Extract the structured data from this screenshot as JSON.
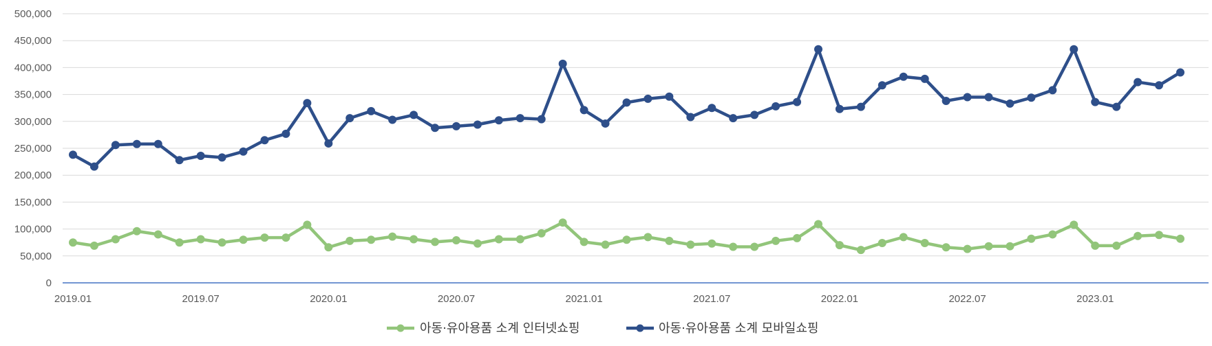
{
  "chart_data": {
    "type": "line",
    "title": "",
    "xlabel": "",
    "ylabel": "",
    "ylim": [
      0,
      500000
    ],
    "y_ticks": [
      0,
      50000,
      100000,
      150000,
      200000,
      250000,
      300000,
      350000,
      400000,
      450000,
      500000
    ],
    "y_tick_labels": [
      "0",
      "50,000",
      "100,000",
      "150,000",
      "200,000",
      "250,000",
      "300,000",
      "350,000",
      "400,000",
      "450,000",
      "500,000"
    ],
    "x": [
      "2019.01",
      "2019.02",
      "2019.03",
      "2019.04",
      "2019.05",
      "2019.06",
      "2019.07",
      "2019.08",
      "2019.09",
      "2019.10",
      "2019.11",
      "2019.12",
      "2020.01",
      "2020.02",
      "2020.03",
      "2020.04",
      "2020.05",
      "2020.06",
      "2020.07",
      "2020.08",
      "2020.09",
      "2020.10",
      "2020.11",
      "2020.12",
      "2021.01",
      "2021.02",
      "2021.03",
      "2021.04",
      "2021.05",
      "2021.06",
      "2021.07",
      "2021.08",
      "2021.09",
      "2021.10",
      "2021.11",
      "2021.12",
      "2022.01",
      "2022.02",
      "2022.03",
      "2022.04",
      "2022.05",
      "2022.06",
      "2022.07",
      "2022.08",
      "2022.09",
      "2022.10",
      "2022.11",
      "2022.12",
      "2023.01",
      "2023.02",
      "2023.03",
      "2023.04",
      "2023.05"
    ],
    "x_tick_labels": [
      "2019.01",
      "2019.07",
      "2020.01",
      "2020.07",
      "2021.01",
      "2021.07",
      "2022.01",
      "2022.07",
      "2023.01"
    ],
    "grid": true,
    "legend_position": "bottom",
    "series": [
      {
        "name": "아동·유아용품 소계 인터넷쇼핑",
        "color": "#92c57a",
        "values": [
          75000,
          69000,
          81000,
          96000,
          90000,
          75000,
          81000,
          75000,
          80000,
          84000,
          84000,
          108000,
          66000,
          78000,
          80000,
          86000,
          81000,
          76000,
          79000,
          73000,
          81000,
          81000,
          92000,
          112000,
          76000,
          71000,
          80000,
          85000,
          78000,
          71000,
          73000,
          67000,
          67000,
          78000,
          83000,
          109000,
          70000,
          61000,
          74000,
          85000,
          74000,
          66000,
          63000,
          68000,
          68000,
          82000,
          90000,
          108000,
          69000,
          69000,
          87000,
          89000,
          82000
        ]
      },
      {
        "name": "아동·유아용품 소계 모바일쇼핑",
        "color": "#2e4f8a",
        "values": [
          238000,
          216000,
          256000,
          258000,
          258000,
          228000,
          236000,
          233000,
          244000,
          265000,
          277000,
          334000,
          259000,
          306000,
          319000,
          303000,
          312000,
          288000,
          291000,
          294000,
          302000,
          306000,
          304000,
          407000,
          321000,
          296000,
          335000,
          342000,
          346000,
          308000,
          325000,
          306000,
          312000,
          328000,
          336000,
          434000,
          323000,
          327000,
          367000,
          383000,
          379000,
          338000,
          345000,
          345000,
          333000,
          344000,
          358000,
          434000,
          336000,
          327000,
          373000,
          367000,
          391000
        ]
      }
    ]
  }
}
